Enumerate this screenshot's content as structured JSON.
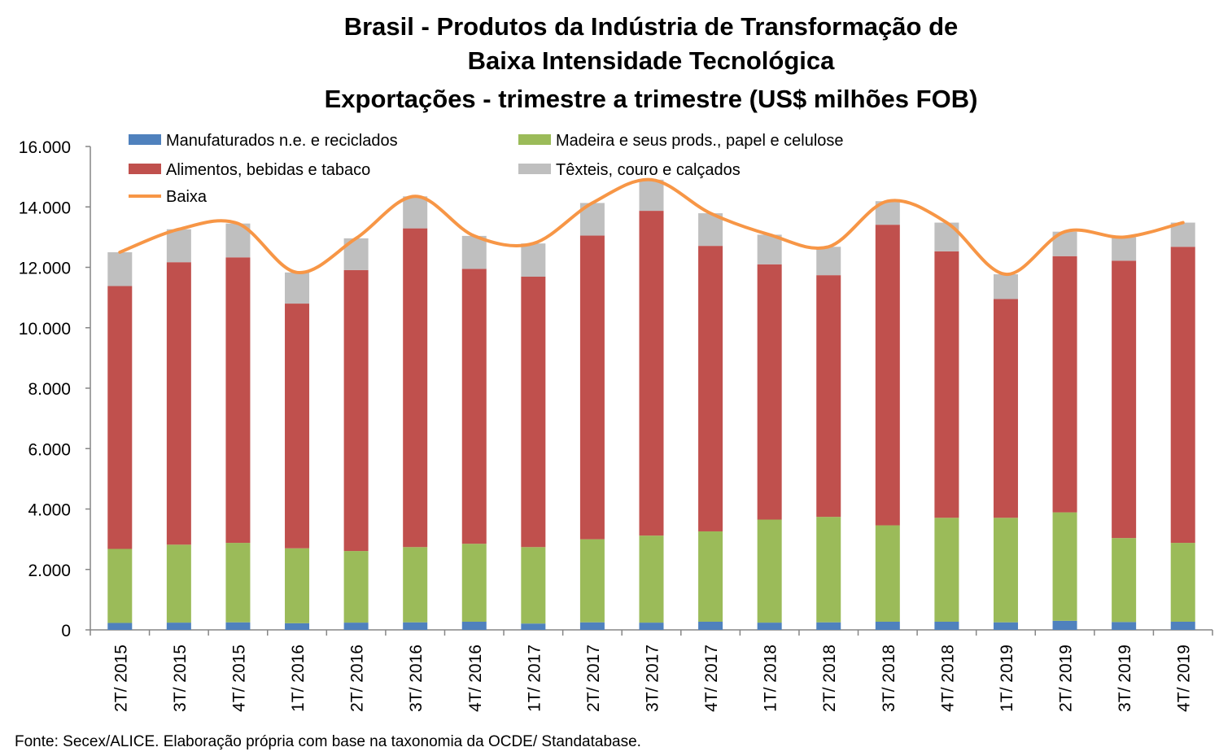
{
  "chart_data": {
    "type": "bar",
    "stacked": true,
    "title_lines": [
      "Brasil - Produtos da Indústria de Transformação de",
      "Baixa Intensidade Tecnológica",
      "Exportações - trimestre a trimestre (US$ milhões FOB)"
    ],
    "categories": [
      "2T/ 2015",
      "3T/ 2015",
      "4T/ 2015",
      "1T/ 2016",
      "2T/ 2016",
      "3T/ 2016",
      "4T/ 2016",
      "1T/ 2017",
      "2T/ 2017",
      "3T/ 2017",
      "4T/ 2017",
      "1T/ 2018",
      "2T/ 2018",
      "3T/ 2018",
      "4T/ 2018",
      "1T/ 2019",
      "2T/ 2019",
      "3T/ 2019",
      "4T/ 2019"
    ],
    "y_ticks": [
      "0",
      "2.000",
      "4.000",
      "6.000",
      "8.000",
      "10.000",
      "12.000",
      "14.000",
      "16.000"
    ],
    "ylim": [
      0,
      16000
    ],
    "series": [
      {
        "name": "Manufaturados n.e. e reciclados",
        "color": "#4f81bd",
        "values": [
          230,
          240,
          250,
          220,
          240,
          250,
          270,
          210,
          250,
          240,
          270,
          240,
          250,
          270,
          270,
          250,
          300,
          260,
          270
        ]
      },
      {
        "name": "Madeira e seus prods., papel e celulose",
        "color": "#9bbb59",
        "values": [
          2450,
          2580,
          2630,
          2480,
          2370,
          2490,
          2580,
          2530,
          2750,
          2880,
          2990,
          3410,
          3490,
          3190,
          3440,
          3460,
          3590,
          2780,
          2610
        ]
      },
      {
        "name": "Alimentos, bebidas e tabaco",
        "color": "#c0504d",
        "values": [
          8700,
          9350,
          9450,
          8100,
          9300,
          10550,
          9100,
          8950,
          10050,
          10750,
          9450,
          8450,
          8000,
          9950,
          8820,
          7240,
          8480,
          9180,
          9800
        ]
      },
      {
        "name": "Têxteis, couro e calçados",
        "color": "#bfbfbf",
        "values": [
          1120,
          1090,
          1120,
          1030,
          1050,
          1060,
          1090,
          1100,
          1080,
          1030,
          1080,
          980,
          940,
          780,
          950,
          820,
          810,
          780,
          800
        ]
      }
    ],
    "line": {
      "name": "Baixa",
      "color": "#f79646",
      "values": [
        12500,
        13260,
        13450,
        11830,
        12960,
        14350,
        13040,
        12790,
        14130,
        14900,
        13790,
        13080,
        12680,
        14190,
        13480,
        11770,
        13180,
        13000,
        13480
      ]
    },
    "legend_position": "top",
    "grid": false
  },
  "source_text": "Fonte: Secex/ALICE. Elaboração própria com base na taxonomia da OCDE/ Standatabase."
}
